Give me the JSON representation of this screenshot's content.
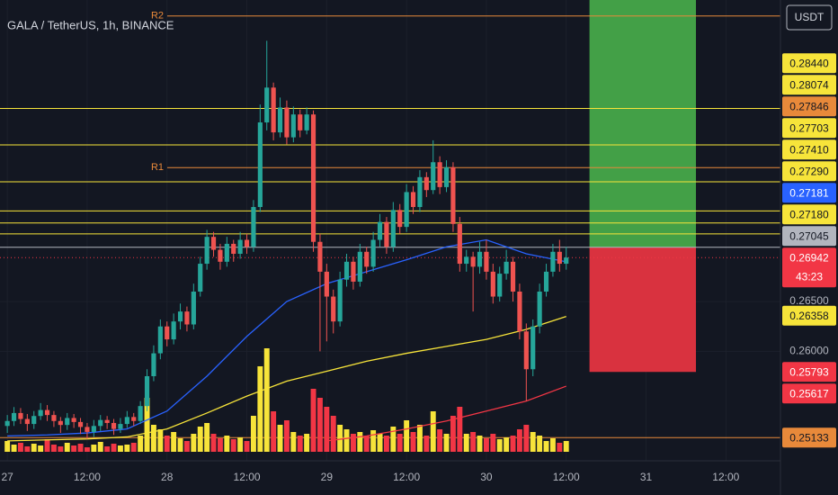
{
  "chart_data": {
    "type": "candlestick",
    "title": "GALA / TetherUS, 1h, BINANCE",
    "currency": "USDT",
    "xlim": [
      -1.1,
      116.2
    ],
    "xticks": [
      {
        "value": 0,
        "label": "27"
      },
      {
        "value": 12,
        "label": "12:00"
      },
      {
        "value": 24,
        "label": "28"
      },
      {
        "value": 36,
        "label": "12:00"
      },
      {
        "value": 48,
        "label": "29"
      },
      {
        "value": 60,
        "label": "12:00"
      },
      {
        "value": 72,
        "label": "30"
      },
      {
        "value": 84,
        "label": "12:00"
      },
      {
        "value": 96,
        "label": "31"
      },
      {
        "value": 108,
        "label": "12:00"
      }
    ],
    "ylim": [
      0.249,
      0.2953
    ],
    "yticks": [
      {
        "value": 0.26,
        "label": "0.26000"
      },
      {
        "value": 0.265,
        "label": "0.26500"
      }
    ],
    "up_color": "#26a69a",
    "down_color": "#ef5350",
    "volume_up_color": "#f7e43a",
    "volume_down_color": "#f23645",
    "candles": {
      "open": [
        0.2525,
        0.253,
        0.2538,
        0.2532,
        0.2527,
        0.2535,
        0.2541,
        0.2536,
        0.253,
        0.2526,
        0.2533,
        0.2529,
        0.2524,
        0.2519,
        0.2525,
        0.2531,
        0.2528,
        0.2522,
        0.2527,
        0.2534,
        0.253,
        0.2545,
        0.2575,
        0.2598,
        0.2625,
        0.2612,
        0.263,
        0.264,
        0.2627,
        0.266,
        0.2688,
        0.2715,
        0.2702,
        0.269,
        0.2708,
        0.2698,
        0.2712,
        0.2705,
        0.2745,
        0.283,
        0.2865,
        0.282,
        0.2845,
        0.2815,
        0.2838,
        0.2822,
        0.2838,
        0.271,
        0.268,
        0.2655,
        0.263,
        0.2672,
        0.269,
        0.267,
        0.27,
        0.2685,
        0.2712,
        0.273,
        0.2705,
        0.2742,
        0.2725,
        0.276,
        0.2745,
        0.2775,
        0.2762,
        0.279,
        0.2765,
        0.2785,
        0.2728,
        0.2688,
        0.2695,
        0.2685,
        0.27,
        0.268,
        0.2655,
        0.2678,
        0.269,
        0.266,
        0.262,
        0.2582,
        0.2625,
        0.266,
        0.268,
        0.27,
        0.2688
      ],
      "high": [
        0.2536,
        0.2544,
        0.2543,
        0.2537,
        0.254,
        0.2548,
        0.2546,
        0.254,
        0.2534,
        0.2538,
        0.2537,
        0.2533,
        0.2528,
        0.2531,
        0.2536,
        0.2535,
        0.2532,
        0.2533,
        0.254,
        0.2538,
        0.255,
        0.2582,
        0.2606,
        0.2632,
        0.263,
        0.2638,
        0.2648,
        0.2645,
        0.2668,
        0.2695,
        0.2722,
        0.272,
        0.2708,
        0.2715,
        0.2712,
        0.272,
        0.2718,
        0.2752,
        0.2848,
        0.2912,
        0.287,
        0.2855,
        0.2852,
        0.2846,
        0.2843,
        0.2845,
        0.2842,
        0.2718,
        0.2688,
        0.2662,
        0.268,
        0.2698,
        0.2695,
        0.2708,
        0.2705,
        0.272,
        0.2738,
        0.2735,
        0.275,
        0.2748,
        0.2768,
        0.2766,
        0.2782,
        0.278,
        0.2812,
        0.2796,
        0.2792,
        0.279,
        0.2735,
        0.2702,
        0.27,
        0.271,
        0.2712,
        0.2688,
        0.2685,
        0.2702,
        0.2695,
        0.2668,
        0.2628,
        0.2632,
        0.2668,
        0.2688,
        0.2708,
        0.2712,
        0.2705
      ],
      "low": [
        0.2518,
        0.2525,
        0.2527,
        0.252,
        0.2522,
        0.2531,
        0.253,
        0.2524,
        0.2518,
        0.2521,
        0.2523,
        0.2517,
        0.2512,
        0.2514,
        0.252,
        0.2522,
        0.2516,
        0.2518,
        0.2523,
        0.2525,
        0.2527,
        0.254,
        0.257,
        0.2592,
        0.2605,
        0.2607,
        0.2622,
        0.262,
        0.2622,
        0.2655,
        0.2682,
        0.2695,
        0.2682,
        0.2685,
        0.269,
        0.2693,
        0.2698,
        0.27,
        0.274,
        0.2822,
        0.2812,
        0.2815,
        0.2808,
        0.281,
        0.2815,
        0.2818,
        0.27,
        0.26,
        0.261,
        0.2618,
        0.2625,
        0.2665,
        0.2662,
        0.2665,
        0.2678,
        0.268,
        0.2705,
        0.2698,
        0.27,
        0.2718,
        0.272,
        0.2738,
        0.274,
        0.2755,
        0.2758,
        0.2758,
        0.276,
        0.272,
        0.268,
        0.268,
        0.264,
        0.2678,
        0.2672,
        0.2648,
        0.265,
        0.2672,
        0.265,
        0.2612,
        0.255,
        0.2575,
        0.2618,
        0.2655,
        0.2675,
        0.268,
        0.2682
      ],
      "close": [
        0.253,
        0.2538,
        0.2532,
        0.2527,
        0.2535,
        0.2541,
        0.2536,
        0.253,
        0.2526,
        0.2533,
        0.2529,
        0.2524,
        0.2519,
        0.2525,
        0.2531,
        0.2528,
        0.2522,
        0.2527,
        0.2534,
        0.253,
        0.2545,
        0.2575,
        0.2598,
        0.2625,
        0.2612,
        0.263,
        0.264,
        0.2627,
        0.266,
        0.2688,
        0.2715,
        0.2702,
        0.269,
        0.2708,
        0.2698,
        0.2712,
        0.2705,
        0.2745,
        0.283,
        0.2865,
        0.282,
        0.2845,
        0.2815,
        0.2838,
        0.2822,
        0.2838,
        0.271,
        0.268,
        0.2655,
        0.263,
        0.2672,
        0.269,
        0.267,
        0.27,
        0.2685,
        0.2712,
        0.273,
        0.2705,
        0.2742,
        0.2725,
        0.276,
        0.2745,
        0.2775,
        0.2762,
        0.279,
        0.2765,
        0.2785,
        0.2728,
        0.2688,
        0.2695,
        0.2685,
        0.27,
        0.268,
        0.2655,
        0.2678,
        0.269,
        0.266,
        0.262,
        0.2582,
        0.2625,
        0.266,
        0.268,
        0.27,
        0.2688,
        0.26942
      ],
      "volume": [
        12,
        8,
        10,
        6,
        9,
        7,
        14,
        8,
        6,
        10,
        7,
        9,
        5,
        8,
        11,
        6,
        9,
        7,
        8,
        10,
        18,
        60,
        30,
        25,
        18,
        22,
        15,
        12,
        20,
        28,
        32,
        20,
        15,
        18,
        14,
        16,
        12,
        40,
        95,
        115,
        45,
        30,
        35,
        22,
        18,
        20,
        70,
        60,
        50,
        40,
        30,
        25,
        20,
        22,
        18,
        24,
        20,
        18,
        28,
        20,
        35,
        22,
        30,
        18,
        45,
        25,
        20,
        40,
        50,
        20,
        22,
        18,
        15,
        20,
        14,
        16,
        18,
        25,
        30,
        22,
        18,
        12,
        15,
        10,
        12
      ]
    },
    "moving_averages": [
      {
        "color": "#2962ff",
        "x": [
          0,
          6,
          12,
          18,
          24,
          30,
          36,
          42,
          48,
          54,
          60,
          66,
          72,
          78,
          84
        ],
        "values": [
          0.2515,
          0.2516,
          0.2518,
          0.2522,
          0.254,
          0.2575,
          0.2615,
          0.265,
          0.2668,
          0.268,
          0.2692,
          0.2705,
          0.2712,
          0.2698,
          0.269
        ]
      },
      {
        "color": "#f7e43a",
        "x": [
          0,
          6,
          12,
          18,
          24,
          30,
          36,
          42,
          48,
          54,
          60,
          66,
          72,
          78,
          84
        ],
        "values": [
          0.251,
          0.2511,
          0.2512,
          0.2514,
          0.2522,
          0.2538,
          0.2555,
          0.257,
          0.258,
          0.259,
          0.2598,
          0.2605,
          0.2612,
          0.2622,
          0.2635
        ]
      },
      {
        "color": "#f23645",
        "x": [
          48,
          54,
          60,
          66,
          72,
          78,
          84
        ],
        "values": [
          0.251,
          0.2515,
          0.2522,
          0.253,
          0.254,
          0.255,
          0.2565
        ]
      }
    ],
    "pivots": [
      {
        "name": "R2",
        "value": 0.2937,
        "color": "#e8893a"
      },
      {
        "name": "R1",
        "value": 0.27846,
        "color": "#e8893a"
      }
    ],
    "price_labels": [
      {
        "value": 0.2844,
        "label": "0.28440",
        "color": "#f7e43a",
        "text_color": "#131722",
        "line": "solid"
      },
      {
        "value": 0.28074,
        "label": "0.28074",
        "color": "#f7e43a",
        "text_color": "#131722",
        "line": "solid"
      },
      {
        "value": 0.27846,
        "label": "0.27846",
        "color": "#e8893a",
        "text_color": "#131722",
        "line": "none"
      },
      {
        "value": 0.27703,
        "label": "0.27703",
        "color": "#f7e43a",
        "text_color": "#131722",
        "line": "solid"
      },
      {
        "value": 0.2741,
        "label": "0.27410",
        "color": "#f7e43a",
        "text_color": "#131722",
        "line": "solid"
      },
      {
        "value": 0.2729,
        "label": "0.27290",
        "color": "#f7e43a",
        "text_color": "#131722",
        "line": "solid"
      },
      {
        "value": 0.27181,
        "label": "0.27181",
        "color": "#2962ff",
        "text_color": "#ffffff",
        "line": "none"
      },
      {
        "value": 0.2718,
        "label": "0.27180",
        "color": "#f7e43a",
        "text_color": "#131722",
        "line": "solid"
      },
      {
        "value": 0.27045,
        "label": "0.27045",
        "color": "#b2b5be",
        "text_color": "#131722",
        "line": "solid"
      },
      {
        "value": 0.26942,
        "label": "0.26942",
        "color": "#f23645",
        "text_color": "#ffffff",
        "line": "dotted",
        "countdown": "43:23"
      },
      {
        "value": 0.26358,
        "label": "0.26358",
        "color": "#f7e43a",
        "text_color": "#131722",
        "line": "none"
      },
      {
        "value": 0.25793,
        "label": "0.25793",
        "color": "#f23645",
        "text_color": "#ffffff",
        "line": "none"
      },
      {
        "value": 0.25617,
        "label": "0.25617",
        "color": "#f23645",
        "text_color": "#ffffff",
        "line": "none"
      },
      {
        "value": 0.25133,
        "label": "0.25133",
        "color": "#e8893a",
        "text_color": "#131722",
        "line": "solid"
      }
    ],
    "position": {
      "x": [
        87.5,
        103.5
      ],
      "entry": 0.27045,
      "target": 0.299,
      "stop": 0.25793,
      "target_color": "#43a047",
      "stop_color": "#d9323f"
    }
  }
}
